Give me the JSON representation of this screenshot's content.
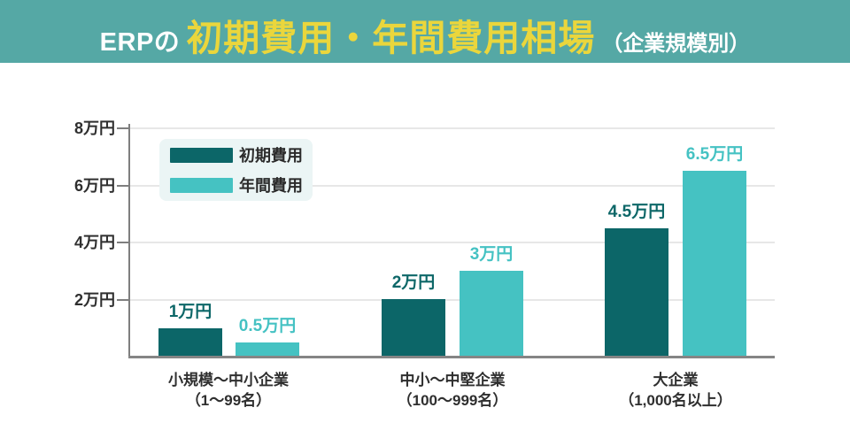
{
  "header": {
    "title_prefix": "ERPの",
    "title_main": "初期費用・年間費用相場",
    "title_suffix": "（企業規模別）",
    "bg_color": "#55a8a5",
    "accent_color": "#ead63c"
  },
  "legend": {
    "items": [
      {
        "label": "初期費用",
        "color": "#0c6668"
      },
      {
        "label": "年間費用",
        "color": "#45c2c2"
      }
    ]
  },
  "chart_data": {
    "type": "bar",
    "title": "ERPの初期費用・年間費用相場（企業規模別）",
    "unit": "万円",
    "categories": [
      {
        "line1": "小規模～中小企業",
        "line2": "（1～99名）"
      },
      {
        "line1": "中小～中堅企業",
        "line2": "（100～999名）"
      },
      {
        "line1": "大企業",
        "line2": "（1,000名以上）"
      }
    ],
    "series": [
      {
        "name": "初期費用",
        "color": "#0c6668",
        "label_color": "#0d6768",
        "values": [
          1,
          2,
          4.5
        ],
        "value_labels": [
          "1万円",
          "2万円",
          "4.5万円"
        ]
      },
      {
        "name": "年間費用",
        "color": "#45c2c2",
        "label_color": "#45c2c3",
        "values": [
          0.5,
          3,
          6.5
        ],
        "value_labels": [
          "0.5万円",
          "3万円",
          "6.5万円"
        ]
      }
    ],
    "ylim": [
      0,
      8
    ],
    "yticks": [
      {
        "value": 2,
        "label": "2万円"
      },
      {
        "value": 4,
        "label": "4万円"
      },
      {
        "value": 6,
        "label": "6万円"
      },
      {
        "value": 8,
        "label": "8万円"
      }
    ],
    "grid": true,
    "legend_position": "upper-left"
  }
}
